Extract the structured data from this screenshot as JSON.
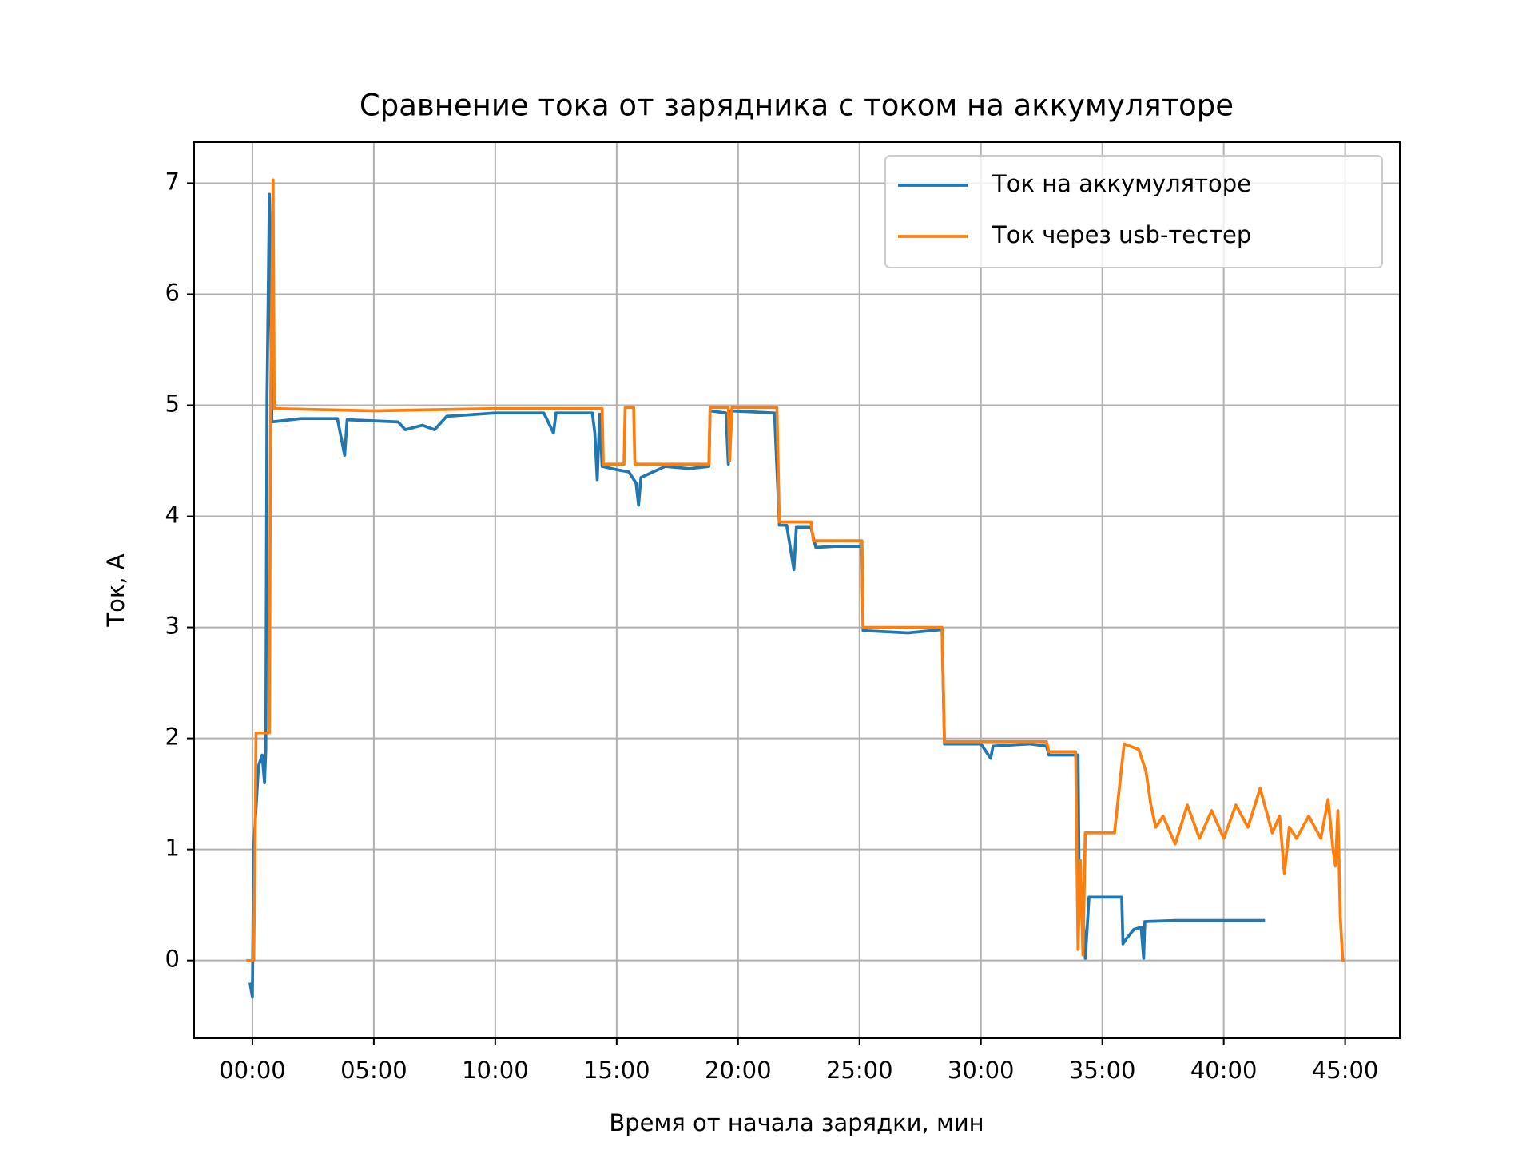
{
  "chart_data": {
    "type": "line",
    "title": "Сравнение тока от зарядника с током на аккумуляторе",
    "xlabel": "Время от начала зарядки, мин",
    "ylabel": "Ток, А",
    "xlim": [
      -2.4,
      47.25
    ],
    "ylim": [
      -0.7,
      7.37
    ],
    "xticks": [
      {
        "value": 0,
        "label": "00:00"
      },
      {
        "value": 5,
        "label": "05:00"
      },
      {
        "value": 10,
        "label": "10:00"
      },
      {
        "value": 15,
        "label": "15:00"
      },
      {
        "value": 20,
        "label": "20:00"
      },
      {
        "value": 25,
        "label": "25:00"
      },
      {
        "value": 30,
        "label": "30:00"
      },
      {
        "value": 35,
        "label": "35:00"
      },
      {
        "value": 40,
        "label": "40:00"
      },
      {
        "value": 45,
        "label": "45:00"
      }
    ],
    "yticks": [
      0,
      1,
      2,
      3,
      4,
      5,
      6,
      7
    ],
    "grid": true,
    "legend": "upper right",
    "series": [
      {
        "name": "Ток на аккумуляторе",
        "color": "#1f77b4",
        "x": [
          -0.1,
          0,
          0.05,
          0.25,
          0.4,
          0.5,
          0.55,
          0.6,
          0.7,
          0.8,
          2,
          3.5,
          3.8,
          3.9,
          6,
          6.3,
          7,
          7.5,
          8,
          10,
          12,
          12.4,
          12.5,
          14,
          14.1,
          14.2,
          14.3,
          14.4,
          15,
          15.5,
          15.8,
          15.9,
          16,
          16.5,
          17,
          18,
          18.8,
          18.85,
          19.5,
          19.6,
          19.7,
          21.5,
          21.7,
          22,
          22.3,
          22.4,
          23,
          23.2,
          24,
          25.1,
          25.15,
          27,
          28.4,
          28.5,
          30,
          30.4,
          30.5,
          32,
          32.7,
          32.8,
          34,
          34.05,
          34.2,
          34.3,
          34.45,
          35.8,
          35.85,
          36,
          36.3,
          36.6,
          36.7,
          36.75,
          38,
          40,
          41.7
        ],
        "values": [
          -0.2,
          -0.33,
          1.0,
          1.75,
          1.85,
          1.6,
          1.9,
          5.05,
          6.9,
          4.85,
          4.88,
          4.88,
          4.55,
          4.87,
          4.85,
          4.78,
          4.82,
          4.78,
          4.9,
          4.93,
          4.93,
          4.75,
          4.93,
          4.93,
          4.75,
          4.33,
          4.92,
          4.45,
          4.42,
          4.4,
          4.3,
          4.1,
          4.35,
          4.4,
          4.45,
          4.43,
          4.45,
          4.95,
          4.93,
          4.47,
          4.95,
          4.93,
          3.92,
          3.92,
          3.52,
          3.9,
          3.9,
          3.72,
          3.73,
          3.73,
          2.97,
          2.95,
          2.98,
          1.95,
          1.95,
          1.82,
          1.93,
          1.95,
          1.93,
          1.85,
          1.85,
          0.6,
          0.45,
          0.02,
          0.57,
          0.57,
          0.15,
          0.2,
          0.28,
          0.3,
          0.02,
          0.35,
          0.36,
          0.36,
          0.36
        ]
      },
      {
        "name": "Ток через usb-тестер",
        "color": "#ff7f0e",
        "x": [
          -0.25,
          0.05,
          0.1,
          0.15,
          0.7,
          0.75,
          0.85,
          0.9,
          5,
          10,
          14.4,
          14.45,
          15.3,
          15.35,
          15.7,
          15.75,
          18.8,
          18.85,
          19.6,
          19.65,
          19.75,
          21.6,
          21.7,
          23,
          23.1,
          25.1,
          25.15,
          28.4,
          28.5,
          32.7,
          32.8,
          33.9,
          34.0,
          34.1,
          34.2,
          34.3,
          35,
          35.5,
          35.9,
          36.5,
          36.8,
          37,
          37.2,
          37.5,
          38,
          38.5,
          39,
          39.5,
          40,
          40.5,
          41,
          41.5,
          42,
          42.3,
          42.5,
          42.7,
          43,
          43.5,
          44,
          44.3,
          44.5,
          44.6,
          44.7,
          44.8,
          44.9,
          45
        ],
        "values": [
          0,
          0,
          0.8,
          2.05,
          2.05,
          5,
          7.03,
          4.97,
          4.95,
          4.97,
          4.97,
          4.47,
          4.47,
          4.98,
          4.98,
          4.47,
          4.47,
          4.98,
          4.98,
          4.5,
          4.98,
          4.98,
          3.95,
          3.95,
          3.78,
          3.78,
          3.0,
          3.0,
          1.97,
          1.97,
          1.88,
          1.88,
          0.1,
          0.9,
          0.05,
          1.15,
          1.15,
          1.15,
          1.95,
          1.9,
          1.7,
          1.4,
          1.2,
          1.3,
          1.05,
          1.4,
          1.1,
          1.35,
          1.1,
          1.4,
          1.2,
          1.55,
          1.15,
          1.3,
          0.78,
          1.2,
          1.1,
          1.3,
          1.1,
          1.45,
          1.0,
          0.85,
          1.35,
          0.4,
          0,
          0
        ]
      }
    ]
  }
}
